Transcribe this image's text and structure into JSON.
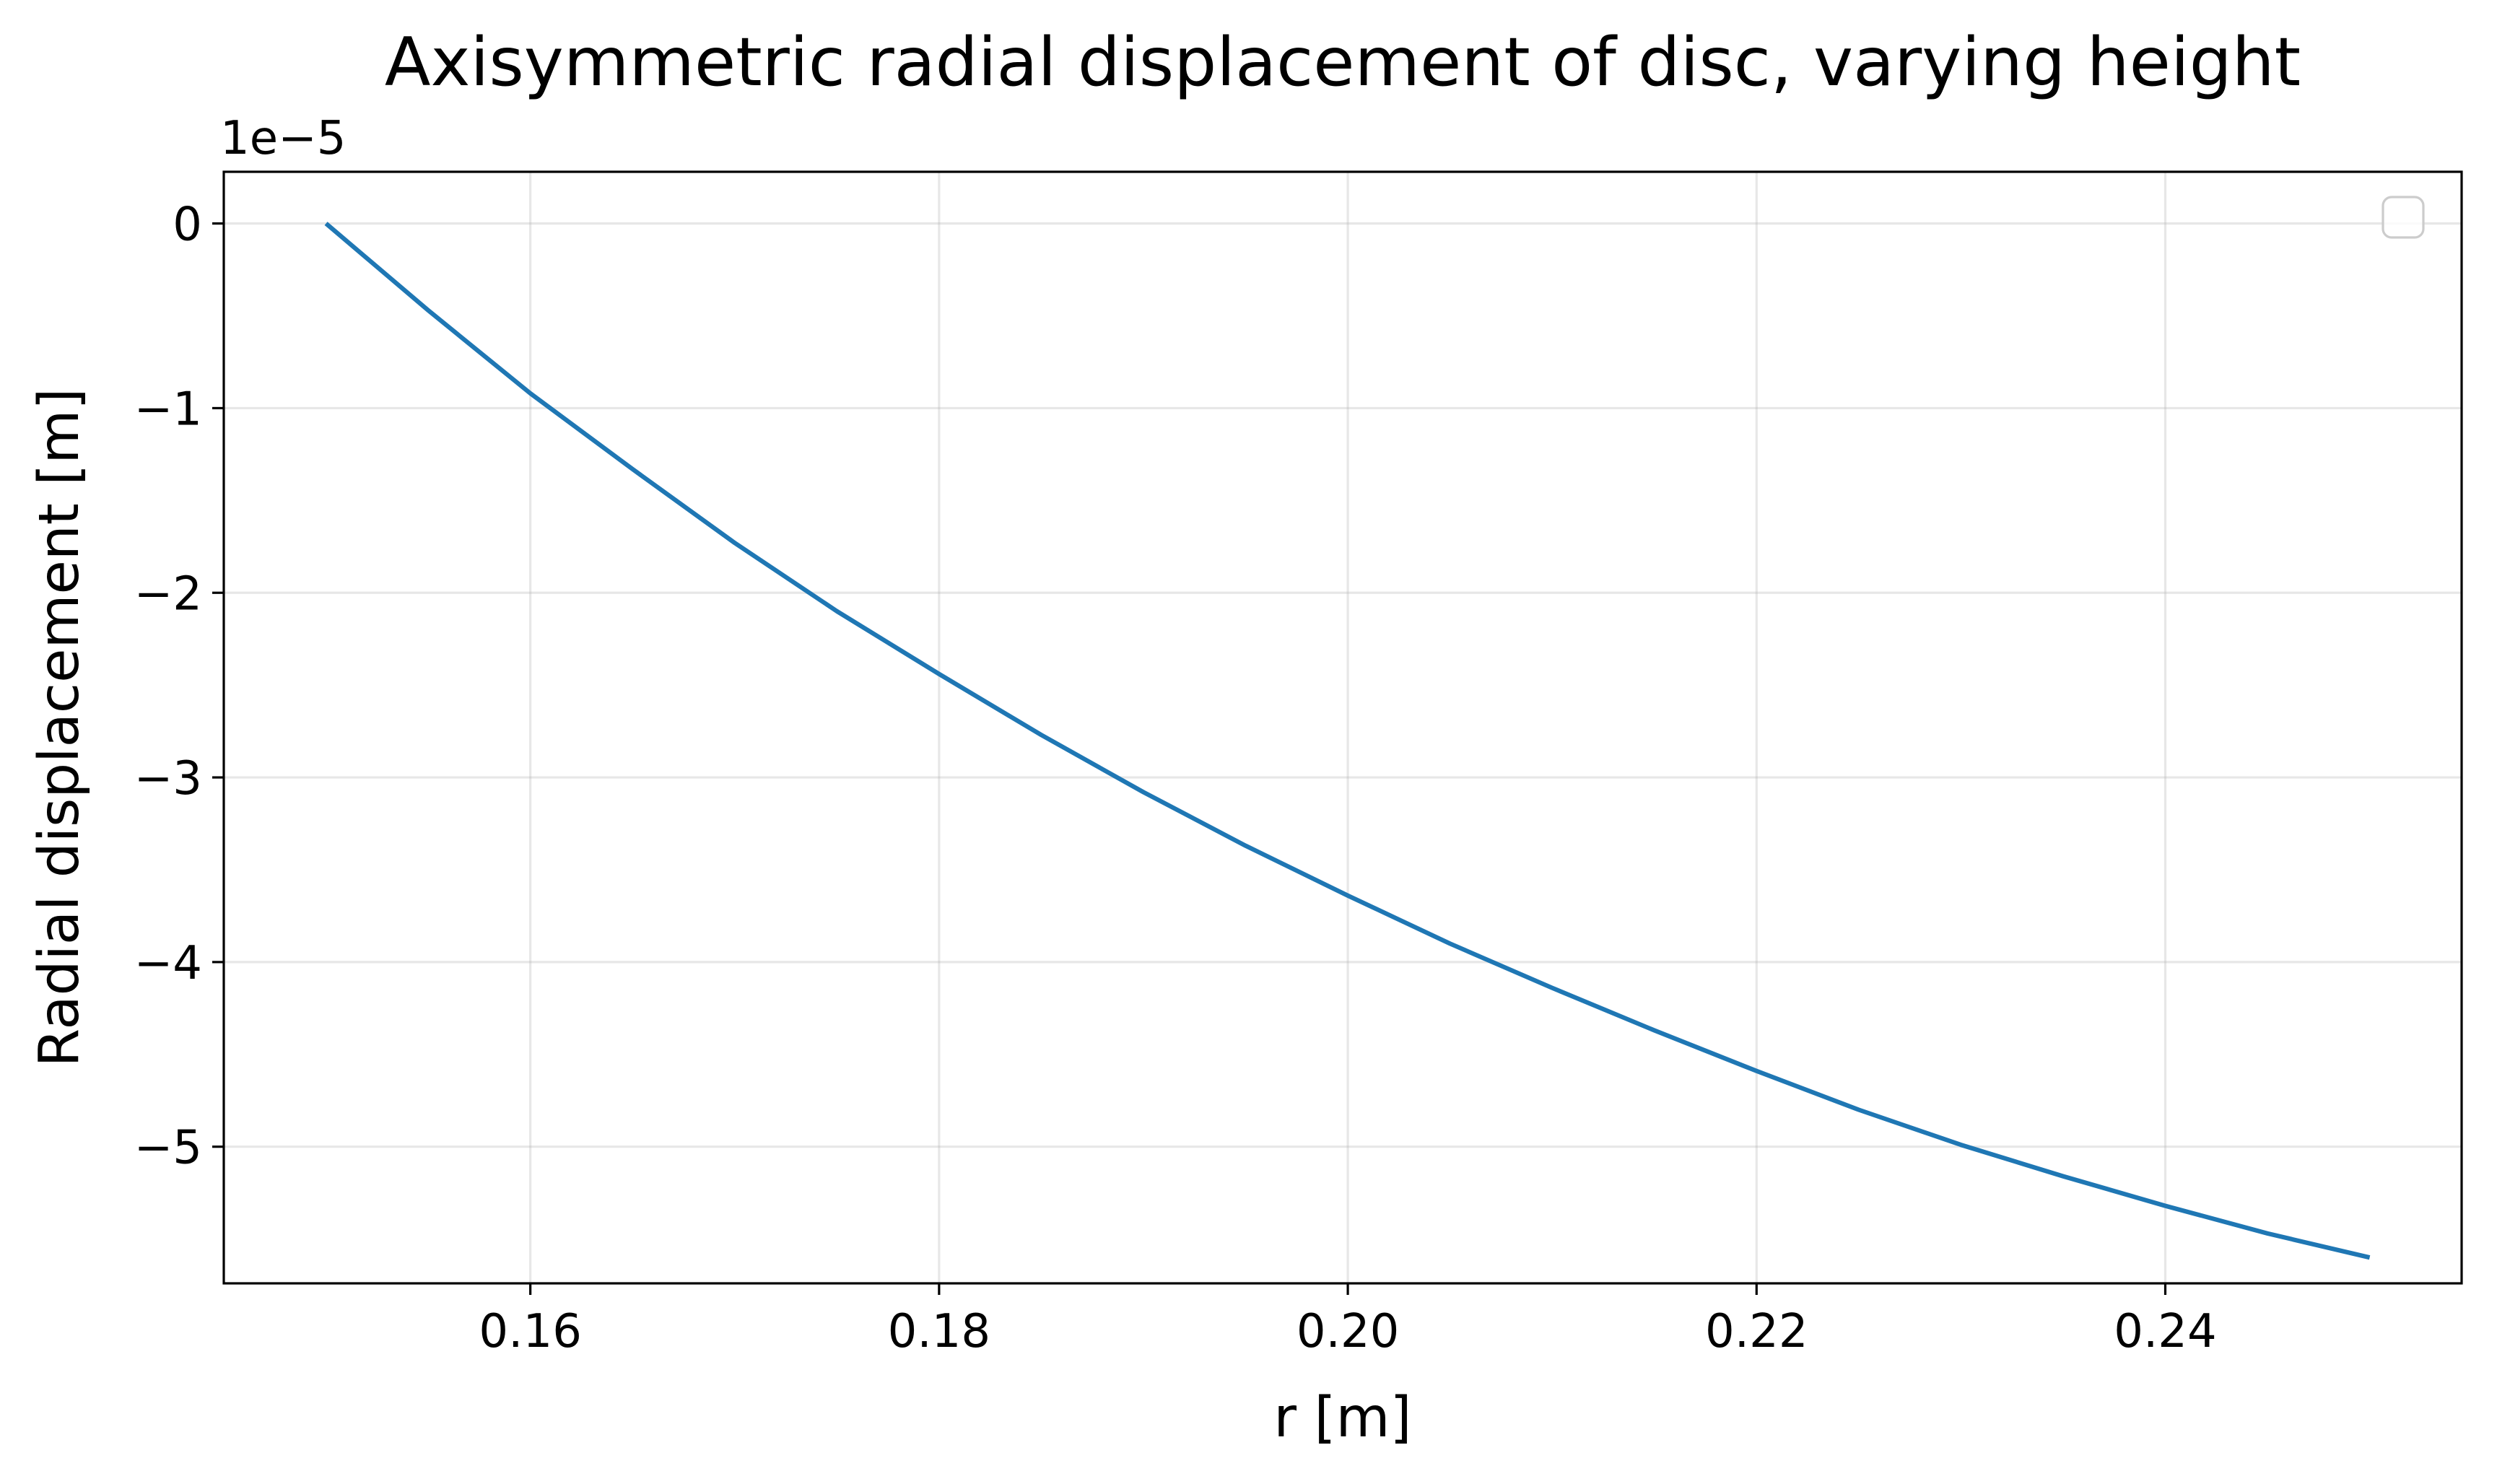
{
  "chart_data": {
    "type": "line",
    "title": "Axisymmetric radial displacement of disc, varying height",
    "xlabel": "r [m]",
    "ylabel": "Radial displacement [m]",
    "y_offset_label": "1e−5",
    "y_scale_factor": 1e-05,
    "xlim": [
      0.145,
      0.2545
    ],
    "ylim": [
      -5.74,
      0.28
    ],
    "x_ticks": [
      0.16,
      0.18,
      0.2,
      0.22,
      0.24
    ],
    "x_tick_labels": [
      "0.16",
      "0.18",
      "0.20",
      "0.22",
      "0.24"
    ],
    "y_ticks": [
      0,
      -1,
      -2,
      -3,
      -4,
      -5
    ],
    "y_tick_labels": [
      "0",
      "−1",
      "−2",
      "−3",
      "−4",
      "−5"
    ],
    "grid": true,
    "legend": {
      "visible": true,
      "placement": "top-right",
      "entries": []
    },
    "series": [
      {
        "color": "#1f77b4",
        "x": [
          0.15,
          0.155,
          0.16,
          0.165,
          0.17,
          0.175,
          0.18,
          0.185,
          0.19,
          0.195,
          0.2,
          0.205,
          0.21,
          0.215,
          0.22,
          0.225,
          0.23,
          0.235,
          0.24,
          0.245,
          0.25
        ],
        "y": [
          0.0,
          -0.47,
          -0.92,
          -1.33,
          -1.73,
          -2.1,
          -2.44,
          -2.77,
          -3.08,
          -3.37,
          -3.64,
          -3.9,
          -4.14,
          -4.37,
          -4.59,
          -4.8,
          -4.99,
          -5.16,
          -5.32,
          -5.47,
          -5.6
        ]
      }
    ]
  }
}
